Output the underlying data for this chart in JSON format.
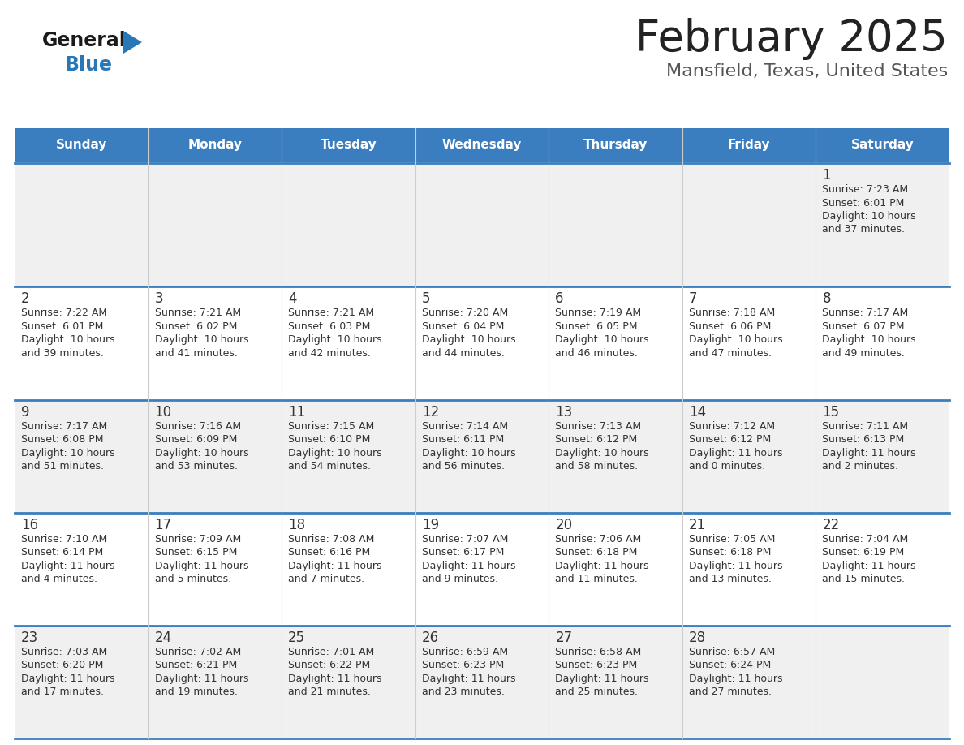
{
  "title": "February 2025",
  "subtitle": "Mansfield, Texas, United States",
  "header_bg": "#3a7ebf",
  "header_text_color": "#ffffff",
  "row_bg_odd": "#f0f0f0",
  "row_bg_even": "#ffffff",
  "separator_color": "#3a7ebf",
  "day_names": [
    "Sunday",
    "Monday",
    "Tuesday",
    "Wednesday",
    "Thursday",
    "Friday",
    "Saturday"
  ],
  "title_color": "#222222",
  "subtitle_color": "#555555",
  "day_number_color": "#333333",
  "info_color": "#333333",
  "logo_general_color": "#1a1a1a",
  "logo_blue_color": "#2878b8",
  "weeks": [
    [
      {
        "day": null,
        "sunrise": null,
        "sunset": null,
        "daylight": null
      },
      {
        "day": null,
        "sunrise": null,
        "sunset": null,
        "daylight": null
      },
      {
        "day": null,
        "sunrise": null,
        "sunset": null,
        "daylight": null
      },
      {
        "day": null,
        "sunrise": null,
        "sunset": null,
        "daylight": null
      },
      {
        "day": null,
        "sunrise": null,
        "sunset": null,
        "daylight": null
      },
      {
        "day": null,
        "sunrise": null,
        "sunset": null,
        "daylight": null
      },
      {
        "day": 1,
        "sunrise": "7:23 AM",
        "sunset": "6:01 PM",
        "daylight": "10 hours and 37 minutes."
      }
    ],
    [
      {
        "day": 2,
        "sunrise": "7:22 AM",
        "sunset": "6:01 PM",
        "daylight": "10 hours and 39 minutes."
      },
      {
        "day": 3,
        "sunrise": "7:21 AM",
        "sunset": "6:02 PM",
        "daylight": "10 hours and 41 minutes."
      },
      {
        "day": 4,
        "sunrise": "7:21 AM",
        "sunset": "6:03 PM",
        "daylight": "10 hours and 42 minutes."
      },
      {
        "day": 5,
        "sunrise": "7:20 AM",
        "sunset": "6:04 PM",
        "daylight": "10 hours and 44 minutes."
      },
      {
        "day": 6,
        "sunrise": "7:19 AM",
        "sunset": "6:05 PM",
        "daylight": "10 hours and 46 minutes."
      },
      {
        "day": 7,
        "sunrise": "7:18 AM",
        "sunset": "6:06 PM",
        "daylight": "10 hours and 47 minutes."
      },
      {
        "day": 8,
        "sunrise": "7:17 AM",
        "sunset": "6:07 PM",
        "daylight": "10 hours and 49 minutes."
      }
    ],
    [
      {
        "day": 9,
        "sunrise": "7:17 AM",
        "sunset": "6:08 PM",
        "daylight": "10 hours and 51 minutes."
      },
      {
        "day": 10,
        "sunrise": "7:16 AM",
        "sunset": "6:09 PM",
        "daylight": "10 hours and 53 minutes."
      },
      {
        "day": 11,
        "sunrise": "7:15 AM",
        "sunset": "6:10 PM",
        "daylight": "10 hours and 54 minutes."
      },
      {
        "day": 12,
        "sunrise": "7:14 AM",
        "sunset": "6:11 PM",
        "daylight": "10 hours and 56 minutes."
      },
      {
        "day": 13,
        "sunrise": "7:13 AM",
        "sunset": "6:12 PM",
        "daylight": "10 hours and 58 minutes."
      },
      {
        "day": 14,
        "sunrise": "7:12 AM",
        "sunset": "6:12 PM",
        "daylight": "11 hours and 0 minutes."
      },
      {
        "day": 15,
        "sunrise": "7:11 AM",
        "sunset": "6:13 PM",
        "daylight": "11 hours and 2 minutes."
      }
    ],
    [
      {
        "day": 16,
        "sunrise": "7:10 AM",
        "sunset": "6:14 PM",
        "daylight": "11 hours and 4 minutes."
      },
      {
        "day": 17,
        "sunrise": "7:09 AM",
        "sunset": "6:15 PM",
        "daylight": "11 hours and 5 minutes."
      },
      {
        "day": 18,
        "sunrise": "7:08 AM",
        "sunset": "6:16 PM",
        "daylight": "11 hours and 7 minutes."
      },
      {
        "day": 19,
        "sunrise": "7:07 AM",
        "sunset": "6:17 PM",
        "daylight": "11 hours and 9 minutes."
      },
      {
        "day": 20,
        "sunrise": "7:06 AM",
        "sunset": "6:18 PM",
        "daylight": "11 hours and 11 minutes."
      },
      {
        "day": 21,
        "sunrise": "7:05 AM",
        "sunset": "6:18 PM",
        "daylight": "11 hours and 13 minutes."
      },
      {
        "day": 22,
        "sunrise": "7:04 AM",
        "sunset": "6:19 PM",
        "daylight": "11 hours and 15 minutes."
      }
    ],
    [
      {
        "day": 23,
        "sunrise": "7:03 AM",
        "sunset": "6:20 PM",
        "daylight": "11 hours and 17 minutes."
      },
      {
        "day": 24,
        "sunrise": "7:02 AM",
        "sunset": "6:21 PM",
        "daylight": "11 hours and 19 minutes."
      },
      {
        "day": 25,
        "sunrise": "7:01 AM",
        "sunset": "6:22 PM",
        "daylight": "11 hours and 21 minutes."
      },
      {
        "day": 26,
        "sunrise": "6:59 AM",
        "sunset": "6:23 PM",
        "daylight": "11 hours and 23 minutes."
      },
      {
        "day": 27,
        "sunrise": "6:58 AM",
        "sunset": "6:23 PM",
        "daylight": "11 hours and 25 minutes."
      },
      {
        "day": 28,
        "sunrise": "6:57 AM",
        "sunset": "6:24 PM",
        "daylight": "11 hours and 27 minutes."
      },
      {
        "day": null,
        "sunrise": null,
        "sunset": null,
        "daylight": null
      }
    ]
  ],
  "fig_width": 11.88,
  "fig_height": 9.18,
  "dpi": 100
}
